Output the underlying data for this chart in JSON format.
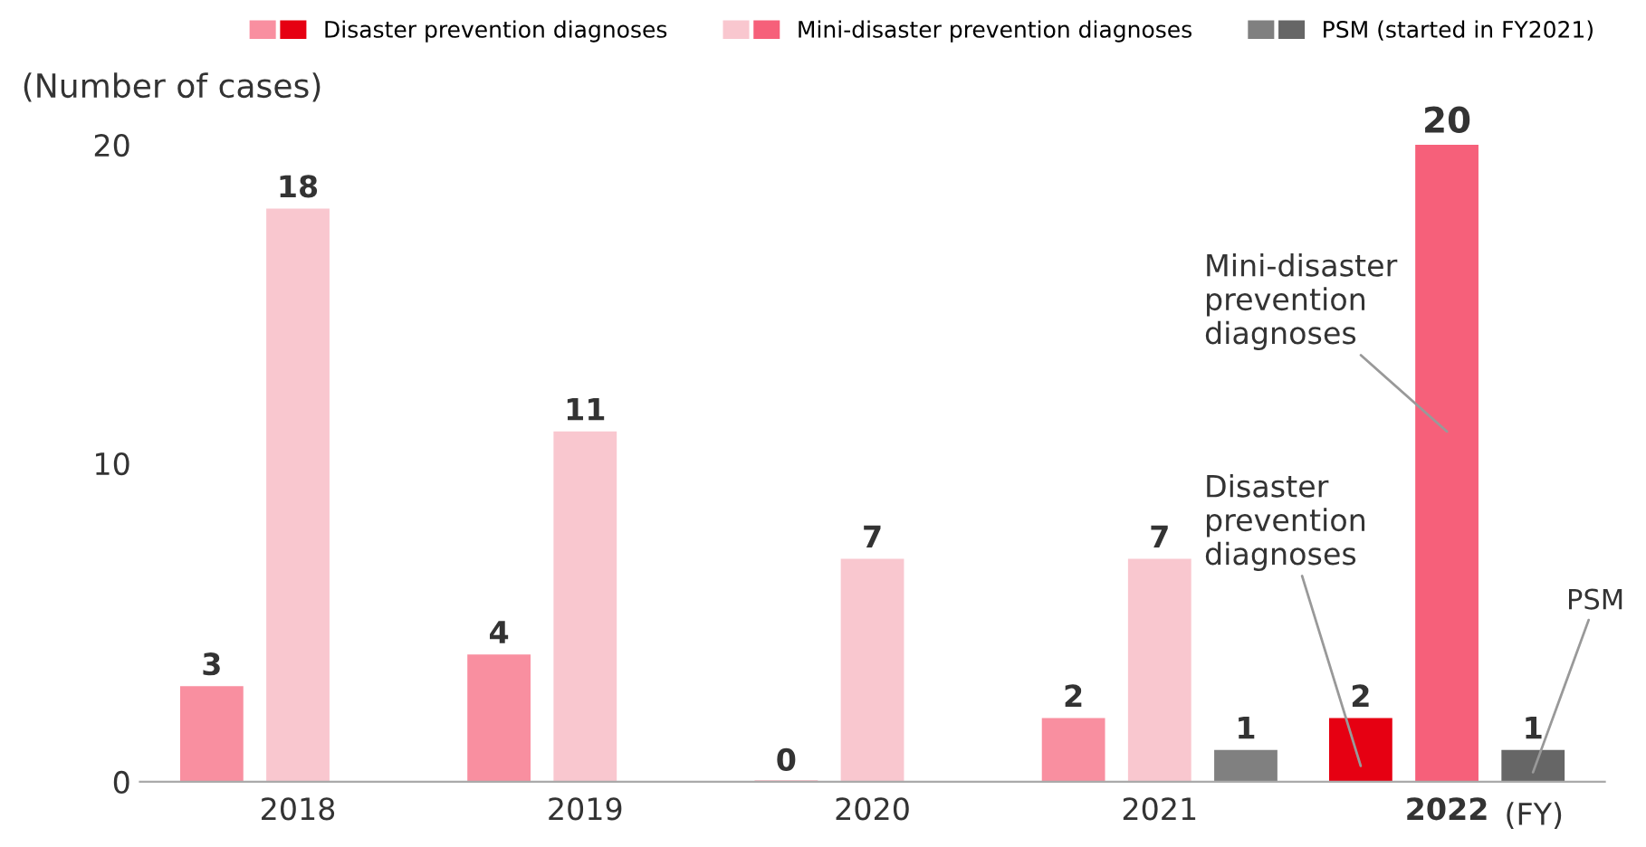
{
  "chart_data": {
    "type": "bar",
    "ylabel": "(Number of cases)",
    "xlabel": "(FY)",
    "categories": [
      "2018",
      "2019",
      "2020",
      "2021",
      "2022"
    ],
    "series": [
      {
        "name": "Disaster prevention diagnoses",
        "color": "#e60012",
        "colors": [
          "#f98fa0",
          "#f98fa0",
          "#f98fa0",
          "#f98fa0",
          "#e60012"
        ],
        "values": [
          3,
          4,
          0,
          2,
          2
        ]
      },
      {
        "name": "Mini-disaster prevention diagnoses",
        "color": "#f6607a",
        "colors": [
          "#f9c7cf",
          "#f9c7cf",
          "#f9c7cf",
          "#f9c7cf",
          "#f6607a"
        ],
        "values": [
          18,
          11,
          7,
          7,
          20
        ]
      },
      {
        "name": "PSM (started in FY2021)",
        "color": "#666666",
        "colors": [
          "#808080",
          "#808080",
          "#808080",
          "#808080",
          "#666666"
        ],
        "values": [
          null,
          null,
          null,
          1,
          1
        ]
      }
    ],
    "ylim": [
      0,
      20
    ],
    "yticks": [
      0,
      10,
      20
    ],
    "grid": false,
    "legend": "top",
    "data_labels": true,
    "annotations": [
      "Disaster prevention diagnoses",
      "Mini-disaster prevention diagnoses",
      "PSM"
    ]
  }
}
